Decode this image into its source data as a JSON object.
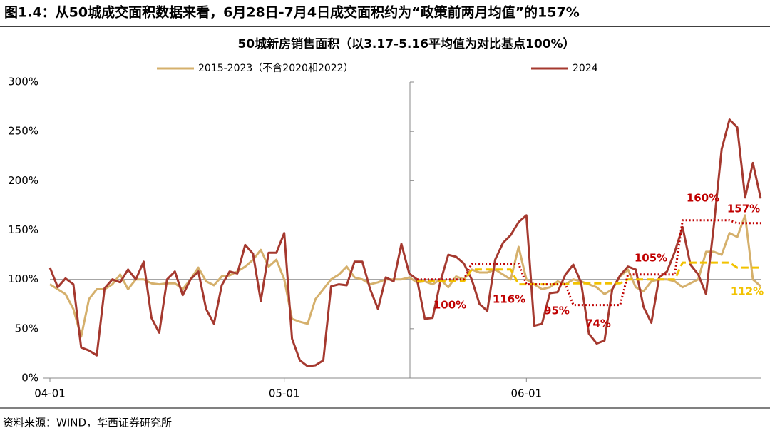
{
  "header": {
    "title": "图1.4：从50城成交面积数据来看，6月28日-7月4日成交面积约为“政策前两月均值”的157%"
  },
  "chart_data": {
    "type": "line",
    "title": "50城新房销售面积（以3.17-5.16平均值为对比基点100%）",
    "categories": [
      "04-01",
      null,
      null,
      null,
      null,
      null,
      null,
      null,
      null,
      null,
      null,
      null,
      null,
      null,
      null,
      null,
      null,
      null,
      null,
      null,
      null,
      null,
      null,
      null,
      null,
      null,
      null,
      null,
      null,
      null,
      "05-01",
      null,
      null,
      null,
      null,
      null,
      null,
      null,
      null,
      null,
      null,
      null,
      null,
      null,
      null,
      null,
      null,
      null,
      null,
      null,
      null,
      null,
      null,
      null,
      null,
      null,
      null,
      null,
      null,
      null,
      null,
      "06-01",
      null,
      null,
      null,
      null,
      null,
      null,
      null,
      null,
      null,
      null,
      null,
      null,
      null,
      null,
      null,
      null,
      null,
      null,
      null,
      null,
      null,
      null,
      null,
      null,
      null,
      null,
      null,
      null,
      null,
      null
    ],
    "series": [
      {
        "name": "2015-2023（不含2020和2022）",
        "color": "#d5b06c",
        "style": "solid",
        "values": [
          95,
          90,
          85,
          70,
          42,
          80,
          90,
          90,
          95,
          105,
          90,
          100,
          100,
          96,
          95,
          96,
          96,
          90,
          100,
          112,
          98,
          94,
          103,
          104,
          108,
          113,
          120,
          130,
          113,
          120,
          100,
          60,
          57,
          55,
          80,
          90,
          100,
          105,
          113,
          102,
          100,
          95,
          97,
          100,
          100,
          100,
          102,
          97,
          98,
          95,
          100,
          92,
          103,
          100,
          110,
          107,
          107,
          110,
          105,
          100,
          133,
          100,
          95,
          90,
          92,
          98,
          95,
          100,
          98,
          95,
          92,
          85,
          90,
          103,
          110,
          92,
          88,
          98,
          100,
          100,
          98,
          92,
          96,
          100,
          128,
          128,
          125,
          147,
          143,
          165,
          100,
          93
        ]
      },
      {
        "name": "2024",
        "color": "#a5392f",
        "style": "solid",
        "values": [
          112,
          92,
          101,
          95,
          31,
          28,
          23,
          91,
          100,
          97,
          110,
          100,
          118,
          61,
          46,
          100,
          108,
          84,
          100,
          108,
          70,
          55,
          94,
          108,
          106,
          135,
          126,
          78,
          127,
          127,
          147,
          40,
          18,
          12,
          13,
          18,
          93,
          95,
          94,
          118,
          118,
          90,
          70,
          102,
          98,
          136,
          106,
          100,
          60,
          61,
          98,
          125,
          123,
          116,
          100,
          75,
          68,
          120,
          137,
          145,
          158,
          165,
          53,
          55,
          86,
          87,
          105,
          115,
          97,
          45,
          35,
          38,
          90,
          104,
          113,
          110,
          72,
          56,
          102,
          108,
          128,
          153,
          115,
          105,
          85,
          155,
          232,
          262,
          254,
          183,
          218,
          182
        ]
      },
      {
        "color": "#f2c200",
        "style": "dashed",
        "values": [
          null,
          null,
          null,
          null,
          null,
          null,
          null,
          null,
          null,
          null,
          null,
          null,
          null,
          null,
          null,
          null,
          null,
          null,
          null,
          null,
          null,
          null,
          null,
          null,
          null,
          null,
          null,
          null,
          null,
          null,
          null,
          null,
          null,
          null,
          null,
          null,
          null,
          null,
          null,
          null,
          null,
          null,
          null,
          null,
          null,
          null,
          null,
          98,
          98,
          98,
          98,
          98,
          98,
          98,
          110,
          110,
          110,
          110,
          110,
          110,
          95,
          95,
          95,
          95,
          95,
          95,
          95,
          96,
          96,
          96,
          96,
          96,
          96,
          96,
          100,
          100,
          100,
          100,
          100,
          100,
          100,
          117,
          117,
          117,
          117,
          117,
          117,
          117,
          112,
          112,
          112,
          112
        ]
      },
      {
        "color": "#c00000",
        "style": "dotted",
        "values": [
          null,
          null,
          null,
          null,
          null,
          null,
          null,
          null,
          null,
          null,
          null,
          null,
          null,
          null,
          null,
          null,
          null,
          null,
          null,
          null,
          null,
          null,
          null,
          null,
          null,
          null,
          null,
          null,
          null,
          null,
          null,
          null,
          null,
          null,
          null,
          null,
          null,
          null,
          null,
          null,
          null,
          null,
          null,
          null,
          null,
          null,
          null,
          100,
          100,
          100,
          100,
          100,
          100,
          100,
          116,
          116,
          116,
          116,
          116,
          116,
          116,
          95,
          95,
          95,
          95,
          95,
          95,
          74,
          74,
          74,
          74,
          74,
          74,
          74,
          105,
          105,
          105,
          105,
          105,
          105,
          105,
          160,
          160,
          160,
          160,
          160,
          160,
          160,
          157,
          157,
          157,
          157
        ]
      }
    ],
    "ylim": [
      0,
      300
    ],
    "yticks": [
      {
        "value": 0,
        "label": "0%"
      },
      {
        "value": 50,
        "label": "50%"
      },
      {
        "value": 100,
        "label": "100%"
      },
      {
        "value": 150,
        "label": "150%"
      },
      {
        "value": 200,
        "label": "200%"
      },
      {
        "value": 250,
        "label": "250%"
      },
      {
        "value": 300,
        "label": "300%"
      }
    ],
    "annotations": [
      {
        "label": "100%",
        "value": 100,
        "color": "#c00000"
      },
      {
        "label": "116%",
        "value": 116,
        "color": "#c00000"
      },
      {
        "label": "95%",
        "value": 95,
        "color": "#c00000"
      },
      {
        "label": "74%",
        "value": 74,
        "color": "#c00000"
      },
      {
        "label": "105%",
        "value": 105,
        "color": "#c00000"
      },
      {
        "label": "160%",
        "value": 160,
        "color": "#c00000"
      },
      {
        "label": "157%",
        "value": 157,
        "color": "#c00000"
      },
      {
        "label": "112%",
        "value": 112,
        "color": "#f2c200"
      }
    ]
  },
  "source": "资料来源：WIND，华西证券研究所"
}
